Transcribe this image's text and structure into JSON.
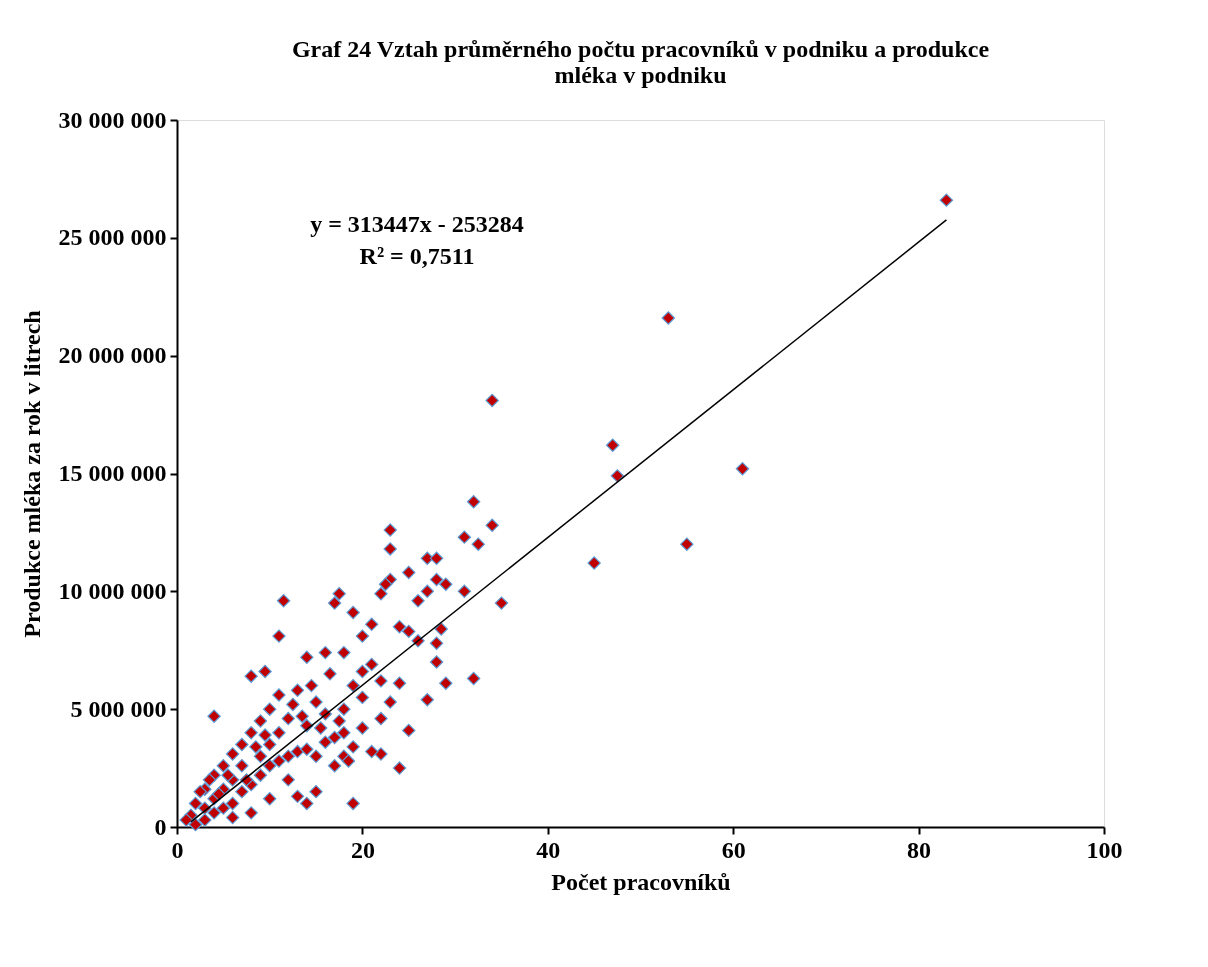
{
  "chart_data": {
    "type": "scatter",
    "title": [
      "Graf 24 Vztah průměrného počtu pracovníků v podniku a produkce",
      "mléka v podniku"
    ],
    "xlabel": "Počet pracovníků",
    "ylabel": "Produkce mléka za rok v litrech",
    "grid": false,
    "legend": false,
    "xlim": [
      0,
      100
    ],
    "xticks": [
      0,
      20,
      40,
      60,
      80,
      100
    ],
    "ylim": [
      0,
      30000000
    ],
    "yticks": [
      0,
      {
        "value": 5000000,
        "label": "5 000 000"
      },
      {
        "value": 10000000,
        "label": "10 000 000"
      },
      {
        "value": 15000000,
        "label": "15 000 000"
      },
      {
        "value": 20000000,
        "label": "20 000 000"
      },
      {
        "value": 25000000,
        "label": "25 000 000"
      },
      {
        "value": 30000000,
        "label": "30 000 000"
      }
    ],
    "annotations": [
      "y = 313447x - 253284",
      "R² = 0,7511"
    ],
    "series": [
      {
        "marker": "diamond",
        "color": "#c00000",
        "x": [
          83,
          53,
          34,
          47,
          47.5,
          61,
          55,
          45,
          32,
          34,
          32.5,
          31,
          31,
          35,
          32,
          29,
          28.5,
          28,
          29,
          27,
          28,
          23,
          23,
          23,
          22.5,
          22,
          25,
          26,
          27,
          11.5,
          17,
          17.5,
          19,
          11,
          21,
          20,
          24,
          25,
          28,
          28,
          26,
          27,
          24,
          25,
          24,
          22,
          19,
          4,
          8,
          9.5,
          14,
          16,
          18,
          21,
          22,
          23,
          20,
          18,
          15,
          13,
          11,
          10,
          9,
          8,
          7,
          6,
          5,
          4,
          3,
          2,
          1.5,
          1,
          2,
          3,
          4,
          5,
          6,
          7,
          8,
          9,
          10,
          11,
          12,
          13,
          14,
          15,
          16,
          17,
          18,
          19,
          20,
          21,
          22,
          13,
          14,
          15,
          12,
          10,
          8,
          6,
          11,
          12,
          14,
          16,
          17,
          18,
          10,
          9,
          7,
          6,
          5,
          4,
          3,
          2.5,
          3.5,
          4.5,
          5.5,
          7.5,
          8.5,
          9.5,
          12.5,
          14.5,
          16.5,
          19,
          20,
          13.5,
          15.5,
          17.5,
          18.5
        ],
        "values": [
          26600000,
          21600000,
          18100000,
          16200000,
          14900000,
          15200000,
          12000000,
          11200000,
          13800000,
          12800000,
          12000000,
          12300000,
          10000000,
          9500000,
          6300000,
          6100000,
          8400000,
          10500000,
          10300000,
          11400000,
          11400000,
          12600000,
          11800000,
          10500000,
          10300000,
          9900000,
          10800000,
          9600000,
          10000000,
          9600000,
          9500000,
          9900000,
          9100000,
          8100000,
          8600000,
          8100000,
          8500000,
          8300000,
          7800000,
          7000000,
          7900000,
          5400000,
          6100000,
          4100000,
          2500000,
          3100000,
          1000000,
          4700000,
          6400000,
          6600000,
          7200000,
          7400000,
          7400000,
          6900000,
          6200000,
          5300000,
          5500000,
          5000000,
          5300000,
          5800000,
          5600000,
          5000000,
          4500000,
          4000000,
          3500000,
          3100000,
          2600000,
          2200000,
          1600000,
          1000000,
          500000,
          300000,
          100000,
          300000,
          600000,
          800000,
          1000000,
          1500000,
          1800000,
          2200000,
          2600000,
          2800000,
          3000000,
          3200000,
          3300000,
          3000000,
          3600000,
          3800000,
          4000000,
          3400000,
          4200000,
          3200000,
          4600000,
          1300000,
          1000000,
          1500000,
          2000000,
          1200000,
          600000,
          400000,
          4000000,
          4600000,
          4300000,
          4800000,
          2600000,
          3000000,
          3500000,
          3000000,
          2600000,
          2000000,
          1600000,
          1200000,
          800000,
          1500000,
          2000000,
          1400000,
          2200000,
          2000000,
          3400000,
          3900000,
          5200000,
          6000000,
          6500000,
          6000000,
          6600000,
          4700000,
          4200000,
          4500000,
          2800000
        ]
      },
      {
        "type": "line",
        "line_style": "solid",
        "color": "#000000",
        "x": [
          1.5,
          83
        ],
        "values": [
          220000,
          25760000
        ]
      }
    ]
  }
}
